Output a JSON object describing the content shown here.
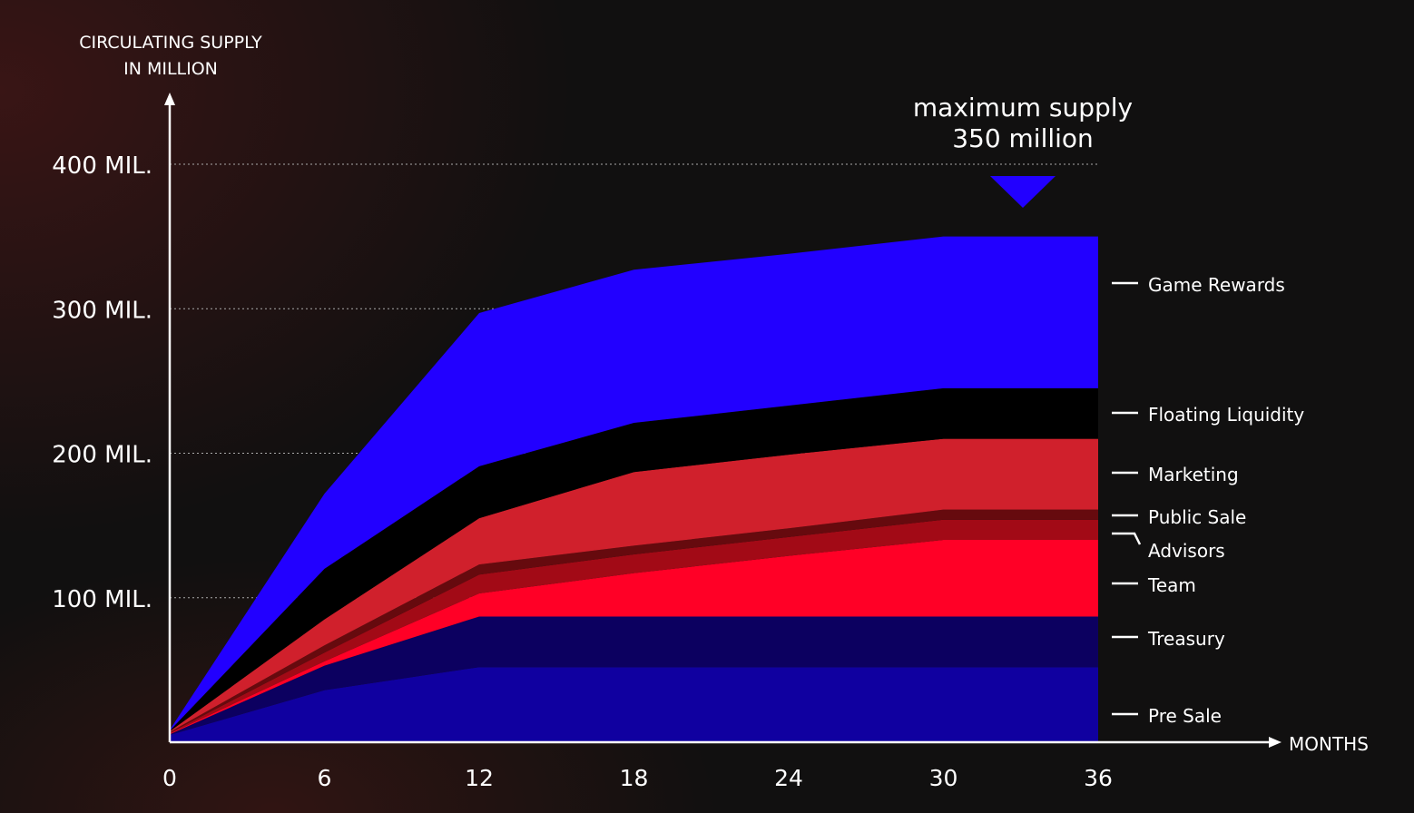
{
  "chart_data": {
    "type": "area",
    "stacked": true,
    "title": "maximum supply 350 million",
    "annotation": {
      "line1": "maximum supply",
      "line2": "350 million",
      "month": 33,
      "value": 350
    },
    "ylabel_line1": "CIRCULATING SUPPLY",
    "ylabel_line2": "IN MILLION",
    "xlabel": "MONTHS",
    "x": [
      0,
      6,
      12,
      18,
      24,
      30,
      36
    ],
    "xlim": [
      0,
      36
    ],
    "ylim": [
      0,
      400
    ],
    "xticks": [
      "0",
      "6",
      "12",
      "18",
      "24",
      "30",
      "36"
    ],
    "yticks": [
      {
        "value": 100,
        "label": "100 MIL."
      },
      {
        "value": 200,
        "label": "200 MIL."
      },
      {
        "value": 300,
        "label": "300 MIL."
      },
      {
        "value": 400,
        "label": "400 MIL."
      }
    ],
    "grid": "horizontal dotted",
    "legend": "right",
    "series": [
      {
        "name": "Pre Sale",
        "color": "#1000a0",
        "values": [
          5,
          36,
          52,
          52,
          52,
          52,
          52
        ]
      },
      {
        "name": "Treasury",
        "color": "#0c0060",
        "values": [
          0.5,
          17,
          35,
          35,
          35,
          35,
          35
        ]
      },
      {
        "name": "Team",
        "color": "#ff0026",
        "values": [
          0.5,
          3,
          16,
          30,
          42,
          53,
          53
        ]
      },
      {
        "name": "Advisors",
        "color": "#a20a16",
        "values": [
          0.5,
          6,
          13,
          13,
          13,
          14,
          14
        ]
      },
      {
        "name": "Public Sale",
        "color": "#660a0e",
        "values": [
          0.5,
          5,
          7,
          6,
          6,
          7,
          7
        ]
      },
      {
        "name": "Marketing",
        "color": "#d0202c",
        "values": [
          0.5,
          18,
          32,
          51,
          51,
          49,
          49
        ]
      },
      {
        "name": "Floating Liquidity",
        "color": "#000000",
        "values": [
          0.5,
          35,
          36,
          34,
          34,
          35,
          35
        ]
      },
      {
        "name": "Game Rewards",
        "color": "#2200ff",
        "values": [
          0.5,
          52,
          106,
          106,
          105,
          105,
          105
        ]
      }
    ]
  }
}
